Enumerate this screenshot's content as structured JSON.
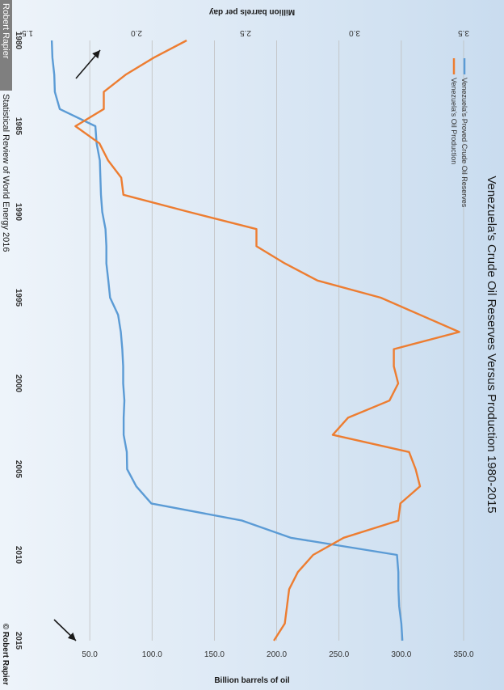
{
  "chart_data": {
    "type": "line",
    "title": "Venezuela's Crude Oil Reserves Versus Production 1980-2015",
    "y_left_label": "Billion barrels of oil",
    "y_right_label": "Million barrels per day",
    "x_ticks": [
      "1980",
      "1985",
      "1990",
      "1995",
      "2000",
      "2005",
      "2010",
      "2015"
    ],
    "y_left_ticks": [
      "50.0",
      "100.0",
      "150.0",
      "200.0",
      "250.0",
      "300.0",
      "350.0"
    ],
    "y_right_ticks": [
      "1.5",
      "2.0",
      "2.5",
      "3.0",
      "3.5"
    ],
    "y_left_range": [
      0,
      350
    ],
    "y_right_range": [
      1.5,
      3.5
    ],
    "x_range": [
      1980,
      2015
    ],
    "grid": true,
    "legend_position": "top-left",
    "series": [
      {
        "name": "Venezuela's Proved Crude Oil Reserves",
        "axis": "left",
        "color": "#5b9bd5",
        "x": [
          1980,
          1981,
          1982,
          1983,
          1984,
          1985,
          1986,
          1987,
          1988,
          1989,
          1990,
          1991,
          1992,
          1993,
          1994,
          1995,
          1996,
          1997,
          1998,
          1999,
          2000,
          2001,
          2002,
          2003,
          2004,
          2005,
          2006,
          2007,
          2008,
          2009,
          2010,
          2011,
          2012,
          2013,
          2014,
          2015
        ],
        "values": [
          19.5,
          20,
          21.5,
          22,
          25.9,
          54.5,
          55.5,
          58.1,
          58.5,
          59,
          60,
          62.6,
          63.3,
          63.3,
          64.9,
          66.3,
          72.7,
          74.9,
          76.1,
          76.8,
          76.8,
          77.8,
          77.2,
          77.2,
          79.7,
          80.0,
          87.3,
          99.4,
          172.3,
          211.2,
          296.5,
          297.6,
          297.7,
          298.3,
          300.0,
          300.9
        ]
      },
      {
        "name": "Venezuela's Oil Production",
        "axis": "right",
        "color": "#ed7d31",
        "x": [
          1980,
          1981,
          1982,
          1983,
          1984,
          1985,
          1986,
          1987,
          1988,
          1989,
          1990,
          1991,
          1992,
          1993,
          1994,
          1995,
          1996,
          1997,
          1998,
          1999,
          2000,
          2001,
          2002,
          2003,
          2004,
          2005,
          2006,
          2007,
          2008,
          2009,
          2010,
          2011,
          2012,
          2013,
          2014,
          2015
        ],
        "values": [
          2.23,
          2.08,
          1.95,
          1.85,
          1.85,
          1.72,
          1.83,
          1.87,
          1.93,
          1.94,
          2.24,
          2.55,
          2.55,
          2.68,
          2.83,
          3.12,
          3.3,
          3.48,
          3.18,
          3.18,
          3.2,
          3.16,
          2.97,
          2.9,
          3.25,
          3.28,
          3.3,
          3.21,
          3.2,
          2.95,
          2.81,
          2.74,
          2.7,
          2.69,
          2.68,
          2.63
        ]
      }
    ]
  },
  "annotations": {
    "source_label": "Statistical Review of World Energy 2016",
    "author_label": "Robert Rapier",
    "copyright": "© Robert Rapier"
  },
  "colors": {
    "reserves": "#5b9bd5",
    "production": "#ed7d31",
    "background_top": "#c9dcef",
    "background_bottom": "#eef4fa",
    "grid": "#bfbfbf",
    "arrow": "#1a1a1a"
  }
}
